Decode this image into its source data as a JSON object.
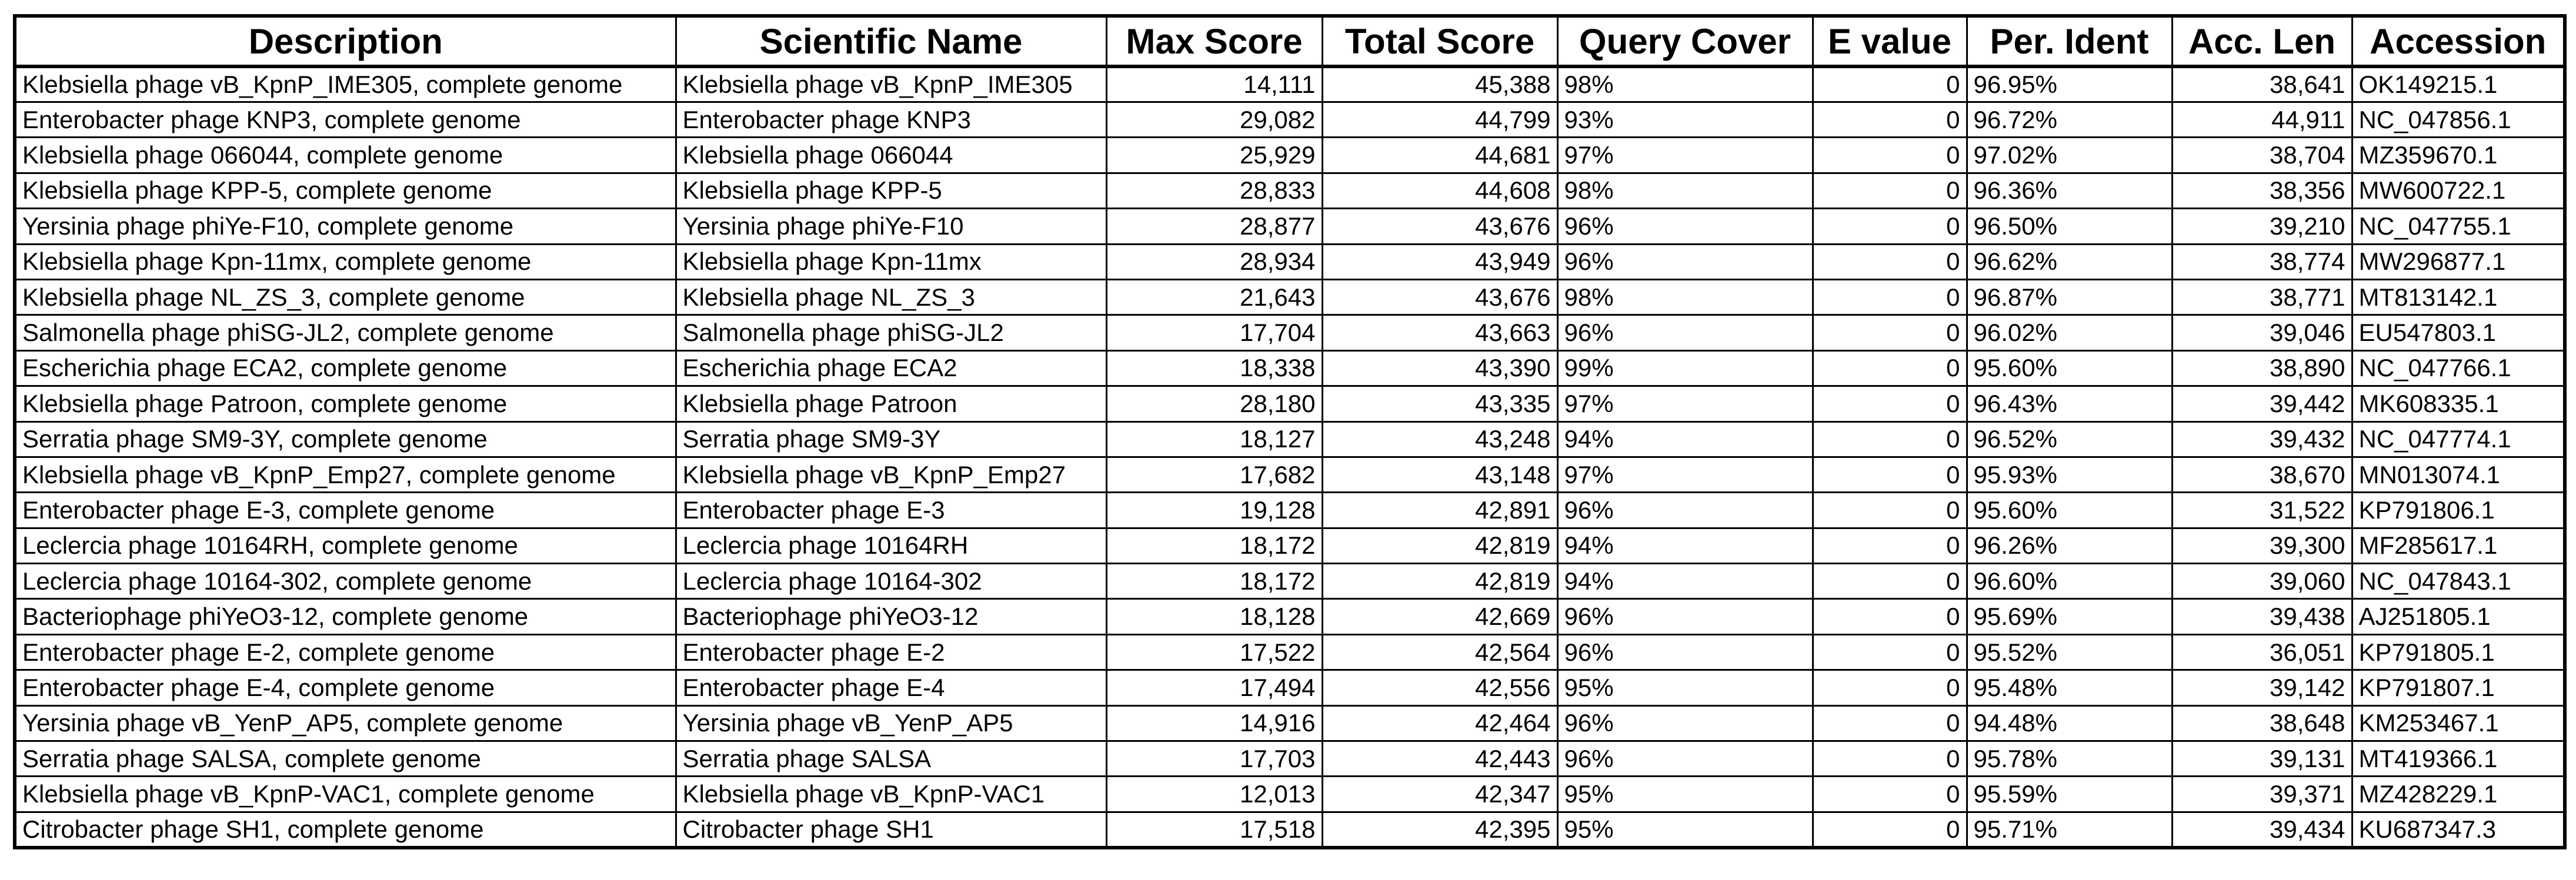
{
  "table": {
    "columns": [
      {
        "key": "description",
        "label": "Description",
        "align": "left"
      },
      {
        "key": "scientific_name",
        "label": "Scientific Name",
        "align": "left"
      },
      {
        "key": "max_score",
        "label": "Max Score",
        "align": "right"
      },
      {
        "key": "total_score",
        "label": "Total Score",
        "align": "right"
      },
      {
        "key": "query_cover",
        "label": "Query Cover",
        "align": "left"
      },
      {
        "key": "e_value",
        "label": "E value",
        "align": "right"
      },
      {
        "key": "per_ident",
        "label": "Per. Ident",
        "align": "left"
      },
      {
        "key": "acc_len",
        "label": "Acc. Len",
        "align": "right"
      },
      {
        "key": "accession",
        "label": "Accession",
        "align": "left"
      }
    ],
    "rows": [
      {
        "description": "Klebsiella phage vB_KpnP_IME305, complete genome",
        "scientific_name": "Klebsiella phage vB_KpnP_IME305",
        "max_score": "14,111",
        "total_score": "45,388",
        "query_cover": "98%",
        "e_value": "0",
        "per_ident": "96.95%",
        "acc_len": "38,641",
        "accession": "OK149215.1"
      },
      {
        "description": "Enterobacter phage KNP3, complete genome",
        "scientific_name": "Enterobacter phage KNP3",
        "max_score": "29,082",
        "total_score": "44,799",
        "query_cover": "93%",
        "e_value": "0",
        "per_ident": "96.72%",
        "acc_len": "44,911",
        "accession": "NC_047856.1"
      },
      {
        "description": "Klebsiella phage 066044, complete genome",
        "scientific_name": "Klebsiella phage 066044",
        "max_score": "25,929",
        "total_score": "44,681",
        "query_cover": "97%",
        "e_value": "0",
        "per_ident": "97.02%",
        "acc_len": "38,704",
        "accession": "MZ359670.1"
      },
      {
        "description": "Klebsiella phage KPP-5, complete genome",
        "scientific_name": "Klebsiella phage KPP-5",
        "max_score": "28,833",
        "total_score": "44,608",
        "query_cover": "98%",
        "e_value": "0",
        "per_ident": "96.36%",
        "acc_len": "38,356",
        "accession": "MW600722.1"
      },
      {
        "description": "Yersinia phage phiYe-F10, complete genome",
        "scientific_name": "Yersinia phage phiYe-F10",
        "max_score": "28,877",
        "total_score": "43,676",
        "query_cover": "96%",
        "e_value": "0",
        "per_ident": "96.50%",
        "acc_len": "39,210",
        "accession": "NC_047755.1"
      },
      {
        "description": "Klebsiella phage Kpn-11mx, complete genome",
        "scientific_name": "Klebsiella phage Kpn-11mx",
        "max_score": "28,934",
        "total_score": "43,949",
        "query_cover": "96%",
        "e_value": "0",
        "per_ident": "96.62%",
        "acc_len": "38,774",
        "accession": "MW296877.1"
      },
      {
        "description": "Klebsiella phage NL_ZS_3, complete genome",
        "scientific_name": "Klebsiella phage NL_ZS_3",
        "max_score": "21,643",
        "total_score": "43,676",
        "query_cover": "98%",
        "e_value": "0",
        "per_ident": "96.87%",
        "acc_len": "38,771",
        "accession": "MT813142.1"
      },
      {
        "description": "Salmonella phage phiSG-JL2, complete genome",
        "scientific_name": "Salmonella phage phiSG-JL2",
        "max_score": "17,704",
        "total_score": "43,663",
        "query_cover": "96%",
        "e_value": "0",
        "per_ident": "96.02%",
        "acc_len": "39,046",
        "accession": "EU547803.1"
      },
      {
        "description": "Escherichia phage ECA2, complete genome",
        "scientific_name": "Escherichia phage ECA2",
        "max_score": "18,338",
        "total_score": "43,390",
        "query_cover": "99%",
        "e_value": "0",
        "per_ident": "95.60%",
        "acc_len": "38,890",
        "accession": "NC_047766.1"
      },
      {
        "description": "Klebsiella phage Patroon, complete genome",
        "scientific_name": "Klebsiella phage Patroon",
        "max_score": "28,180",
        "total_score": "43,335",
        "query_cover": "97%",
        "e_value": "0",
        "per_ident": "96.43%",
        "acc_len": "39,442",
        "accession": "MK608335.1"
      },
      {
        "description": "Serratia phage SM9-3Y, complete genome",
        "scientific_name": "Serratia phage SM9-3Y",
        "max_score": "18,127",
        "total_score": "43,248",
        "query_cover": "94%",
        "e_value": "0",
        "per_ident": "96.52%",
        "acc_len": "39,432",
        "accession": "NC_047774.1"
      },
      {
        "description": "Klebsiella phage vB_KpnP_Emp27, complete genome",
        "scientific_name": "Klebsiella phage vB_KpnP_Emp27",
        "max_score": "17,682",
        "total_score": "43,148",
        "query_cover": "97%",
        "e_value": "0",
        "per_ident": "95.93%",
        "acc_len": "38,670",
        "accession": "MN013074.1"
      },
      {
        "description": "Enterobacter phage E-3, complete genome",
        "scientific_name": "Enterobacter phage E-3",
        "max_score": "19,128",
        "total_score": "42,891",
        "query_cover": "96%",
        "e_value": "0",
        "per_ident": "95.60%",
        "acc_len": "31,522",
        "accession": "KP791806.1"
      },
      {
        "description": "Leclercia phage 10164RH, complete genome",
        "scientific_name": "Leclercia phage 10164RH",
        "max_score": "18,172",
        "total_score": "42,819",
        "query_cover": "94%",
        "e_value": "0",
        "per_ident": "96.26%",
        "acc_len": "39,300",
        "accession": "MF285617.1"
      },
      {
        "description": "Leclercia phage 10164-302, complete genome",
        "scientific_name": "Leclercia phage 10164-302",
        "max_score": "18,172",
        "total_score": "42,819",
        "query_cover": "94%",
        "e_value": "0",
        "per_ident": "96.60%",
        "acc_len": "39,060",
        "accession": "NC_047843.1"
      },
      {
        "description": "Bacteriophage phiYeO3-12, complete genome",
        "scientific_name": "Bacteriophage phiYeO3-12",
        "max_score": "18,128",
        "total_score": "42,669",
        "query_cover": "96%",
        "e_value": "0",
        "per_ident": "95.69%",
        "acc_len": "39,438",
        "accession": "AJ251805.1"
      },
      {
        "description": "Enterobacter phage E-2, complete genome",
        "scientific_name": "Enterobacter phage E-2",
        "max_score": "17,522",
        "total_score": "42,564",
        "query_cover": "96%",
        "e_value": "0",
        "per_ident": "95.52%",
        "acc_len": "36,051",
        "accession": "KP791805.1"
      },
      {
        "description": "Enterobacter phage E-4, complete genome",
        "scientific_name": "Enterobacter phage E-4",
        "max_score": "17,494",
        "total_score": "42,556",
        "query_cover": "95%",
        "e_value": "0",
        "per_ident": "95.48%",
        "acc_len": "39,142",
        "accession": "KP791807.1"
      },
      {
        "description": "Yersinia phage vB_YenP_AP5, complete genome",
        "scientific_name": "Yersinia phage vB_YenP_AP5",
        "max_score": "14,916",
        "total_score": "42,464",
        "query_cover": "96%",
        "e_value": "0",
        "per_ident": "94.48%",
        "acc_len": "38,648",
        "accession": "KM253467.1"
      },
      {
        "description": "Serratia phage SALSA, complete genome",
        "scientific_name": "Serratia phage SALSA",
        "max_score": "17,703",
        "total_score": "42,443",
        "query_cover": "96%",
        "e_value": "0",
        "per_ident": "95.78%",
        "acc_len": "39,131",
        "accession": "MT419366.1"
      },
      {
        "description": "Klebsiella phage vB_KpnP-VAC1, complete genome",
        "scientific_name": "Klebsiella phage vB_KpnP-VAC1",
        "max_score": "12,013",
        "total_score": "42,347",
        "query_cover": "95%",
        "e_value": "0",
        "per_ident": "95.59%",
        "acc_len": "39,371",
        "accession": "MZ428229.1"
      },
      {
        "description": "Citrobacter phage SH1, complete genome",
        "scientific_name": "Citrobacter phage SH1",
        "max_score": "17,518",
        "total_score": "42,395",
        "query_cover": "95%",
        "e_value": "0",
        "per_ident": "95.71%",
        "acc_len": "39,434",
        "accession": "KU687347.3"
      }
    ]
  }
}
